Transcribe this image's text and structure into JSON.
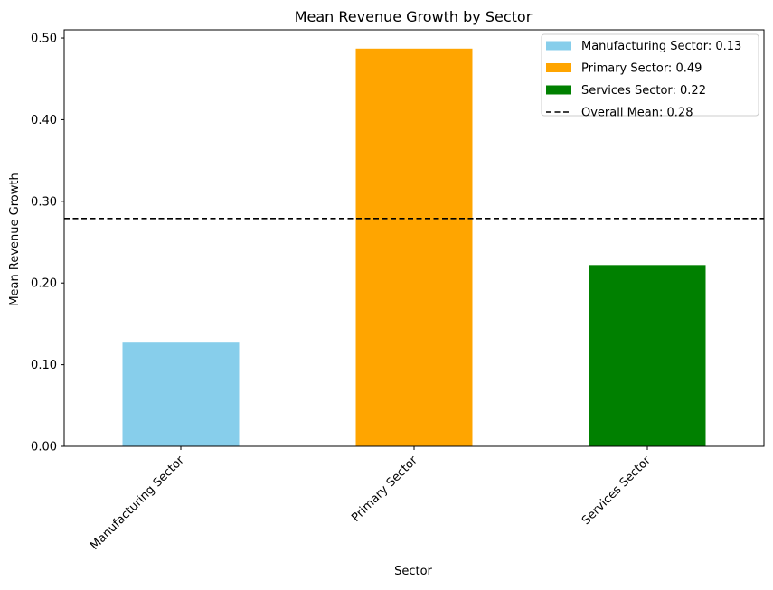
{
  "chart_data": {
    "type": "bar",
    "title": "Mean Revenue Growth by Sector",
    "xlabel": "Sector",
    "ylabel": "Mean Revenue Growth",
    "categories": [
      "Manufacturing Sector",
      "Primary Sector",
      "Services Sector"
    ],
    "values": [
      0.127,
      0.487,
      0.222
    ],
    "colors": [
      "#87CEEB",
      "#FFA500",
      "#008000"
    ],
    "ylim": [
      0,
      0.51
    ],
    "yticks": [
      0.0,
      0.1,
      0.2,
      0.3,
      0.4,
      0.5
    ],
    "ytick_labels": [
      "0.00",
      "0.10",
      "0.20",
      "0.30",
      "0.40",
      "0.50"
    ],
    "reference_line": {
      "value": 0.279,
      "style": "dashed",
      "color": "#000000"
    },
    "legend": {
      "position": "top-right",
      "entries": [
        "Manufacturing Sector: 0.13",
        "Primary Sector: 0.49",
        "Services Sector: 0.22",
        "Overall Mean: 0.28"
      ]
    },
    "grid": false
  }
}
